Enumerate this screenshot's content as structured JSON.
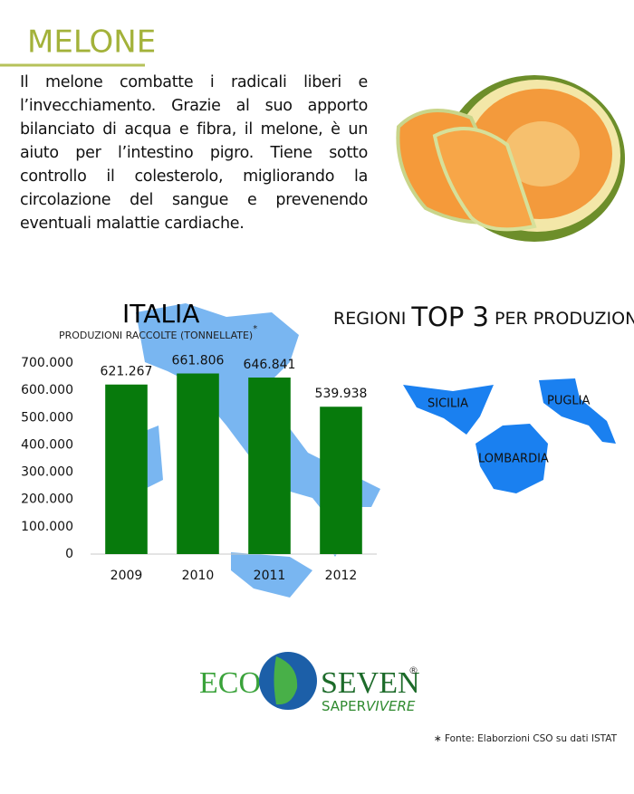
{
  "title": "MELONE",
  "description": "Il melone combatte i radicali liberi e l’invecchiamento. Grazie al suo apporto bilanciato di acqua e fibra, il melone, è un aiuto per l’intestino pigro. Tiene sotto controllo il colesterolo, migliorando la circolazione del sangue e prevenendo eventuali malattie cardiache.",
  "chart_data": {
    "type": "bar",
    "title": "ITALIA",
    "subtitle": "PRODUZIONI RACCOLTE (TONNELLATE)",
    "subtitle_mark": "*",
    "categories": [
      "2009",
      "2010",
      "2011",
      "2012"
    ],
    "values": [
      621267,
      661806,
      646841,
      539938
    ],
    "value_labels": [
      "621.267",
      "661.806",
      "646.841",
      "539.938"
    ],
    "color": "#077a0c",
    "ylim": [
      0,
      700000
    ],
    "yticks": [
      0,
      {
        "value": 100000,
        "label": "100.000"
      },
      {
        "value": 200000,
        "label": "200.000"
      },
      {
        "value": 300000,
        "label": "300.000"
      },
      {
        "value": 400000,
        "label": "400.000"
      },
      {
        "value": 500000,
        "label": "500.000"
      },
      {
        "value": 600000,
        "label": "600.000"
      },
      {
        "value": 700000,
        "label": "700.000"
      }
    ],
    "grid": false
  },
  "regions": {
    "title_prefix": "REGIONI",
    "title_main": "TOP 3",
    "title_suffix": "PER PRODUZIONE",
    "items": [
      "SICILIA",
      "PUGLIA",
      "LOMBARDIA"
    ]
  },
  "logo": {
    "left": "ECO",
    "right": "SEVEN",
    "mark": "®",
    "tagline_prefix": "SAPER",
    "tagline_suffix": "VIVERE"
  },
  "footnote": "∗ Fonte: Elaborzioni CSO su dati ISTAT"
}
